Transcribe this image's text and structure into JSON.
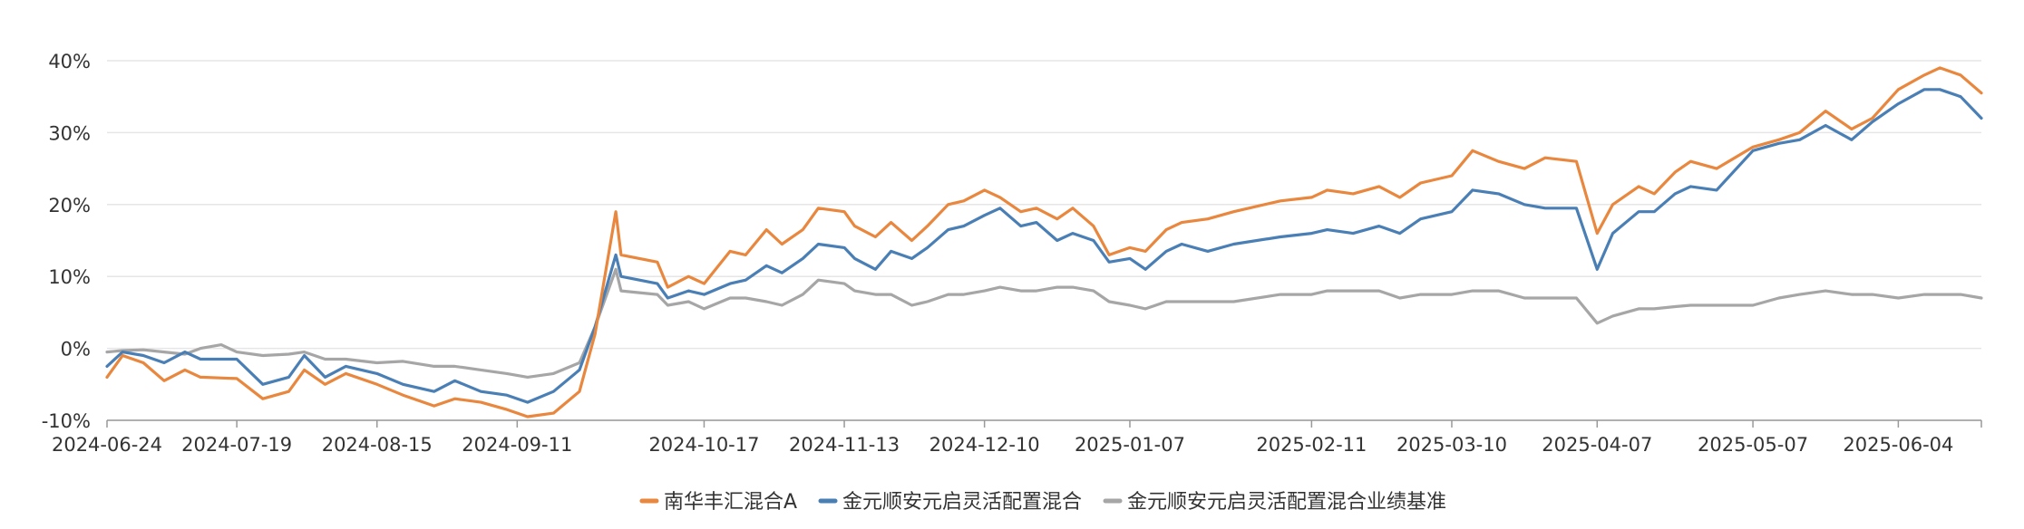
{
  "chart_data": {
    "type": "line",
    "title": "",
    "xlabel": "",
    "ylabel": "",
    "x_range": [
      "2024-06-24",
      "2025-06-20"
    ],
    "ylim": [
      -10,
      40
    ],
    "grid": true,
    "legend_position": "bottom",
    "x_ticks": [
      "2024-06-24",
      "2024-07-19",
      "2024-08-15",
      "2024-09-11",
      "2024-10-17",
      "2024-11-13",
      "2024-12-10",
      "2025-01-07",
      "2025-02-11",
      "2025-03-10",
      "2025-04-07",
      "2025-05-07",
      "2025-06-04"
    ],
    "y_ticks": [
      -10,
      0,
      10,
      20,
      30,
      40
    ],
    "y_tick_labels": [
      "-10%",
      "0%",
      "10%",
      "20%",
      "30%",
      "40%"
    ],
    "series": [
      {
        "name": "南华丰汇混合A",
        "color": "#E8873D",
        "points": [
          [
            "2024-06-24",
            -4.0
          ],
          [
            "2024-06-27",
            -1.0
          ],
          [
            "2024-07-01",
            -2.0
          ],
          [
            "2024-07-05",
            -4.5
          ],
          [
            "2024-07-09",
            -3.0
          ],
          [
            "2024-07-12",
            -4.0
          ],
          [
            "2024-07-19",
            -4.2
          ],
          [
            "2024-07-24",
            -7.0
          ],
          [
            "2024-07-29",
            -6.0
          ],
          [
            "2024-08-01",
            -3.0
          ],
          [
            "2024-08-05",
            -5.0
          ],
          [
            "2024-08-09",
            -3.5
          ],
          [
            "2024-08-15",
            -5.0
          ],
          [
            "2024-08-20",
            -6.5
          ],
          [
            "2024-08-26",
            -8.0
          ],
          [
            "2024-08-30",
            -7.0
          ],
          [
            "2024-09-04",
            -7.5
          ],
          [
            "2024-09-09",
            -8.5
          ],
          [
            "2024-09-13",
            -9.5
          ],
          [
            "2024-09-18",
            -9.0
          ],
          [
            "2024-09-23",
            -6.0
          ],
          [
            "2024-09-26",
            2.0
          ],
          [
            "2024-09-30",
            19.0
          ],
          [
            "2024-10-01",
            13.0
          ],
          [
            "2024-10-08",
            12.0
          ],
          [
            "2024-10-10",
            8.5
          ],
          [
            "2024-10-14",
            10.0
          ],
          [
            "2024-10-17",
            9.0
          ],
          [
            "2024-10-22",
            13.5
          ],
          [
            "2024-10-25",
            13.0
          ],
          [
            "2024-10-29",
            16.5
          ],
          [
            "2024-11-01",
            14.5
          ],
          [
            "2024-11-05",
            16.5
          ],
          [
            "2024-11-08",
            19.5
          ],
          [
            "2024-11-13",
            19.0
          ],
          [
            "2024-11-15",
            17.0
          ],
          [
            "2024-11-19",
            15.5
          ],
          [
            "2024-11-22",
            17.5
          ],
          [
            "2024-11-26",
            15.0
          ],
          [
            "2024-11-29",
            17.0
          ],
          [
            "2024-12-03",
            20.0
          ],
          [
            "2024-12-06",
            20.5
          ],
          [
            "2024-12-10",
            22.0
          ],
          [
            "2024-12-13",
            21.0
          ],
          [
            "2024-12-17",
            19.0
          ],
          [
            "2024-12-20",
            19.5
          ],
          [
            "2024-12-24",
            18.0
          ],
          [
            "2024-12-27",
            19.5
          ],
          [
            "2024-12-31",
            17.0
          ],
          [
            "2025-01-03",
            13.0
          ],
          [
            "2025-01-07",
            14.0
          ],
          [
            "2025-01-10",
            13.5
          ],
          [
            "2025-01-14",
            16.5
          ],
          [
            "2025-01-17",
            17.5
          ],
          [
            "2025-01-22",
            18.0
          ],
          [
            "2025-01-27",
            19.0
          ],
          [
            "2025-02-05",
            20.5
          ],
          [
            "2025-02-11",
            21.0
          ],
          [
            "2025-02-14",
            22.0
          ],
          [
            "2025-02-19",
            21.5
          ],
          [
            "2025-02-24",
            22.5
          ],
          [
            "2025-02-28",
            21.0
          ],
          [
            "2025-03-04",
            23.0
          ],
          [
            "2025-03-10",
            24.0
          ],
          [
            "2025-03-14",
            27.5
          ],
          [
            "2025-03-19",
            26.0
          ],
          [
            "2025-03-24",
            25.0
          ],
          [
            "2025-03-28",
            26.5
          ],
          [
            "2025-04-03",
            26.0
          ],
          [
            "2025-04-07",
            16.0
          ],
          [
            "2025-04-10",
            20.0
          ],
          [
            "2025-04-15",
            22.5
          ],
          [
            "2025-04-18",
            21.5
          ],
          [
            "2025-04-22",
            24.5
          ],
          [
            "2025-04-25",
            26.0
          ],
          [
            "2025-04-30",
            25.0
          ],
          [
            "2025-05-07",
            28.0
          ],
          [
            "2025-05-12",
            29.0
          ],
          [
            "2025-05-16",
            30.0
          ],
          [
            "2025-05-21",
            33.0
          ],
          [
            "2025-05-26",
            30.5
          ],
          [
            "2025-05-30",
            32.0
          ],
          [
            "2025-06-04",
            36.0
          ],
          [
            "2025-06-09",
            38.0
          ],
          [
            "2025-06-12",
            39.0
          ],
          [
            "2025-06-16",
            38.0
          ],
          [
            "2025-06-20",
            35.5
          ]
        ]
      },
      {
        "name": "金元顺安元启灵活配置混合",
        "color": "#4A7FB5",
        "points": [
          [
            "2024-06-24",
            -2.5
          ],
          [
            "2024-06-27",
            -0.5
          ],
          [
            "2024-07-01",
            -1.0
          ],
          [
            "2024-07-05",
            -2.0
          ],
          [
            "2024-07-09",
            -0.5
          ],
          [
            "2024-07-12",
            -1.5
          ],
          [
            "2024-07-19",
            -1.5
          ],
          [
            "2024-07-24",
            -5.0
          ],
          [
            "2024-07-29",
            -4.0
          ],
          [
            "2024-08-01",
            -1.0
          ],
          [
            "2024-08-05",
            -4.0
          ],
          [
            "2024-08-09",
            -2.5
          ],
          [
            "2024-08-15",
            -3.5
          ],
          [
            "2024-08-20",
            -5.0
          ],
          [
            "2024-08-26",
            -6.0
          ],
          [
            "2024-08-30",
            -4.5
          ],
          [
            "2024-09-04",
            -6.0
          ],
          [
            "2024-09-09",
            -6.5
          ],
          [
            "2024-09-13",
            -7.5
          ],
          [
            "2024-09-18",
            -6.0
          ],
          [
            "2024-09-23",
            -3.0
          ],
          [
            "2024-09-26",
            3.0
          ],
          [
            "2024-09-30",
            13.0
          ],
          [
            "2024-10-01",
            10.0
          ],
          [
            "2024-10-08",
            9.0
          ],
          [
            "2024-10-10",
            7.0
          ],
          [
            "2024-10-14",
            8.0
          ],
          [
            "2024-10-17",
            7.5
          ],
          [
            "2024-10-22",
            9.0
          ],
          [
            "2024-10-25",
            9.5
          ],
          [
            "2024-10-29",
            11.5
          ],
          [
            "2024-11-01",
            10.5
          ],
          [
            "2024-11-05",
            12.5
          ],
          [
            "2024-11-08",
            14.5
          ],
          [
            "2024-11-13",
            14.0
          ],
          [
            "2024-11-15",
            12.5
          ],
          [
            "2024-11-19",
            11.0
          ],
          [
            "2024-11-22",
            13.5
          ],
          [
            "2024-11-26",
            12.5
          ],
          [
            "2024-11-29",
            14.0
          ],
          [
            "2024-12-03",
            16.5
          ],
          [
            "2024-12-06",
            17.0
          ],
          [
            "2024-12-10",
            18.5
          ],
          [
            "2024-12-13",
            19.5
          ],
          [
            "2024-12-17",
            17.0
          ],
          [
            "2024-12-20",
            17.5
          ],
          [
            "2024-12-24",
            15.0
          ],
          [
            "2024-12-27",
            16.0
          ],
          [
            "2024-12-31",
            15.0
          ],
          [
            "2025-01-03",
            12.0
          ],
          [
            "2025-01-07",
            12.5
          ],
          [
            "2025-01-10",
            11.0
          ],
          [
            "2025-01-14",
            13.5
          ],
          [
            "2025-01-17",
            14.5
          ],
          [
            "2025-01-22",
            13.5
          ],
          [
            "2025-01-27",
            14.5
          ],
          [
            "2025-02-05",
            15.5
          ],
          [
            "2025-02-11",
            16.0
          ],
          [
            "2025-02-14",
            16.5
          ],
          [
            "2025-02-19",
            16.0
          ],
          [
            "2025-02-24",
            17.0
          ],
          [
            "2025-02-28",
            16.0
          ],
          [
            "2025-03-04",
            18.0
          ],
          [
            "2025-03-10",
            19.0
          ],
          [
            "2025-03-14",
            22.0
          ],
          [
            "2025-03-19",
            21.5
          ],
          [
            "2025-03-24",
            20.0
          ],
          [
            "2025-03-28",
            19.5
          ],
          [
            "2025-04-03",
            19.5
          ],
          [
            "2025-04-07",
            11.0
          ],
          [
            "2025-04-10",
            16.0
          ],
          [
            "2025-04-15",
            19.0
          ],
          [
            "2025-04-18",
            19.0
          ],
          [
            "2025-04-22",
            21.5
          ],
          [
            "2025-04-25",
            22.5
          ],
          [
            "2025-04-30",
            22.0
          ],
          [
            "2025-05-07",
            27.5
          ],
          [
            "2025-05-12",
            28.5
          ],
          [
            "2025-05-16",
            29.0
          ],
          [
            "2025-05-21",
            31.0
          ],
          [
            "2025-05-26",
            29.0
          ],
          [
            "2025-05-30",
            31.5
          ],
          [
            "2025-06-04",
            34.0
          ],
          [
            "2025-06-09",
            36.0
          ],
          [
            "2025-06-12",
            36.0
          ],
          [
            "2025-06-16",
            35.0
          ],
          [
            "2025-06-20",
            32.0
          ]
        ]
      },
      {
        "name": "金元顺安元启灵活配置混合业绩基准",
        "color": "#A6A6A6",
        "points": [
          [
            "2024-06-24",
            -0.5
          ],
          [
            "2024-06-27",
            -0.3
          ],
          [
            "2024-07-01",
            -0.2
          ],
          [
            "2024-07-05",
            -0.5
          ],
          [
            "2024-07-09",
            -0.8
          ],
          [
            "2024-07-12",
            0.0
          ],
          [
            "2024-07-16",
            0.5
          ],
          [
            "2024-07-19",
            -0.5
          ],
          [
            "2024-07-24",
            -1.0
          ],
          [
            "2024-07-29",
            -0.8
          ],
          [
            "2024-08-01",
            -0.5
          ],
          [
            "2024-08-05",
            -1.5
          ],
          [
            "2024-08-09",
            -1.5
          ],
          [
            "2024-08-15",
            -2.0
          ],
          [
            "2024-08-20",
            -1.8
          ],
          [
            "2024-08-26",
            -2.5
          ],
          [
            "2024-08-30",
            -2.5
          ],
          [
            "2024-09-04",
            -3.0
          ],
          [
            "2024-09-09",
            -3.5
          ],
          [
            "2024-09-13",
            -4.0
          ],
          [
            "2024-09-18",
            -3.5
          ],
          [
            "2024-09-23",
            -2.0
          ],
          [
            "2024-09-26",
            3.0
          ],
          [
            "2024-09-30",
            11.0
          ],
          [
            "2024-10-01",
            8.0
          ],
          [
            "2024-10-08",
            7.5
          ],
          [
            "2024-10-10",
            6.0
          ],
          [
            "2024-10-14",
            6.5
          ],
          [
            "2024-10-17",
            5.5
          ],
          [
            "2024-10-22",
            7.0
          ],
          [
            "2024-10-25",
            7.0
          ],
          [
            "2024-10-29",
            6.5
          ],
          [
            "2024-11-01",
            6.0
          ],
          [
            "2024-11-05",
            7.5
          ],
          [
            "2024-11-08",
            9.5
          ],
          [
            "2024-11-13",
            9.0
          ],
          [
            "2024-11-15",
            8.0
          ],
          [
            "2024-11-19",
            7.5
          ],
          [
            "2024-11-22",
            7.5
          ],
          [
            "2024-11-26",
            6.0
          ],
          [
            "2024-11-29",
            6.5
          ],
          [
            "2024-12-03",
            7.5
          ],
          [
            "2024-12-06",
            7.5
          ],
          [
            "2024-12-10",
            8.0
          ],
          [
            "2024-12-13",
            8.5
          ],
          [
            "2024-12-17",
            8.0
          ],
          [
            "2024-12-20",
            8.0
          ],
          [
            "2024-12-24",
            8.5
          ],
          [
            "2024-12-27",
            8.5
          ],
          [
            "2024-12-31",
            8.0
          ],
          [
            "2025-01-03",
            6.5
          ],
          [
            "2025-01-07",
            6.0
          ],
          [
            "2025-01-10",
            5.5
          ],
          [
            "2025-01-14",
            6.5
          ],
          [
            "2025-01-17",
            6.5
          ],
          [
            "2025-01-22",
            6.5
          ],
          [
            "2025-01-27",
            6.5
          ],
          [
            "2025-02-05",
            7.5
          ],
          [
            "2025-02-11",
            7.5
          ],
          [
            "2025-02-14",
            8.0
          ],
          [
            "2025-02-19",
            8.0
          ],
          [
            "2025-02-24",
            8.0
          ],
          [
            "2025-02-28",
            7.0
          ],
          [
            "2025-03-04",
            7.5
          ],
          [
            "2025-03-10",
            7.5
          ],
          [
            "2025-03-14",
            8.0
          ],
          [
            "2025-03-19",
            8.0
          ],
          [
            "2025-03-24",
            7.0
          ],
          [
            "2025-03-28",
            7.0
          ],
          [
            "2025-04-03",
            7.0
          ],
          [
            "2025-04-07",
            3.5
          ],
          [
            "2025-04-10",
            4.5
          ],
          [
            "2025-04-15",
            5.5
          ],
          [
            "2025-04-18",
            5.5
          ],
          [
            "2025-04-22",
            5.8
          ],
          [
            "2025-04-25",
            6.0
          ],
          [
            "2025-04-30",
            6.0
          ],
          [
            "2025-05-07",
            6.0
          ],
          [
            "2025-05-12",
            7.0
          ],
          [
            "2025-05-16",
            7.5
          ],
          [
            "2025-05-21",
            8.0
          ],
          [
            "2025-05-26",
            7.5
          ],
          [
            "2025-05-30",
            7.5
          ],
          [
            "2025-06-04",
            7.0
          ],
          [
            "2025-06-09",
            7.5
          ],
          [
            "2025-06-12",
            7.5
          ],
          [
            "2025-06-16",
            7.5
          ],
          [
            "2025-06-20",
            7.0
          ]
        ]
      }
    ]
  }
}
